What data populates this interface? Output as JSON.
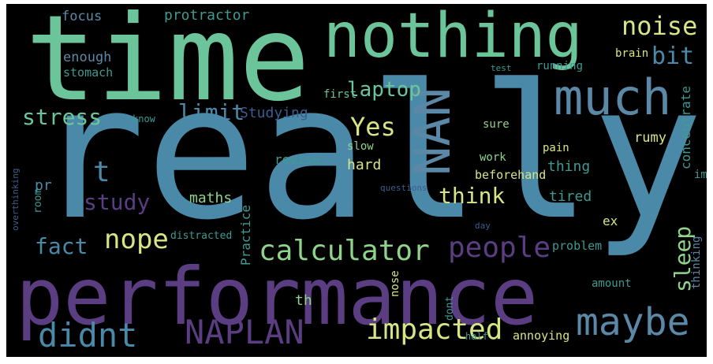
{
  "palette": {
    "yellow": "#d6e685",
    "green": "#6cc59a",
    "lightgreen": "#8fd48a",
    "teal": "#3f9a92",
    "blue": "#4a8aa8",
    "steel": "#5a88a6",
    "indigo": "#3c5d8e",
    "purple": "#5b3d82",
    "darkpurple": "#4a2a6a"
  },
  "words": {
    "really": "really",
    "time": "time",
    "nothing": "nothing",
    "performance": "performance",
    "much": "much",
    "nan": "NAN",
    "maybe": "maybe",
    "naplan": "NAPLAN",
    "didnt": "didnt",
    "impacted": "impacted",
    "calculator": "calculator",
    "people": "people",
    "noise": "noise",
    "bit": "bit",
    "laptop": "laptop",
    "stress": "stress",
    "limit": "limit",
    "yes": "Yes",
    "think": "think",
    "nope": "nope",
    "fact": "fact",
    "study": "study",
    "t": "t",
    "sleep": "sleep",
    "protractor": "protractor",
    "focus": "focus",
    "enough": "enough",
    "stomach": "stomach",
    "studying": "Studying",
    "maths": "maths",
    "revise": "revise",
    "hard": "hard",
    "beforehand": "beforehand",
    "thing": "thing",
    "tired": "tired",
    "pain": "pain",
    "work": "work",
    "rumy": "rumy",
    "concentrate": "concentrate",
    "running": "running",
    "brain": "brain",
    "slow": "slow",
    "sure": "sure",
    "first": "first",
    "know": "know",
    "pr": "pr",
    "room": "room",
    "practice": "Practice",
    "distracted": "distracted",
    "problem": "problem",
    "amount": "amount",
    "thinking": "thinking",
    "im": "im",
    "ex": "ex",
    "th": "th",
    "nose": "nose",
    "dont": "dont",
    "half": "half",
    "annoying": "annoying",
    "day": "day",
    "test": "test",
    "overthinking": "overthinking",
    "questions": "questions"
  }
}
